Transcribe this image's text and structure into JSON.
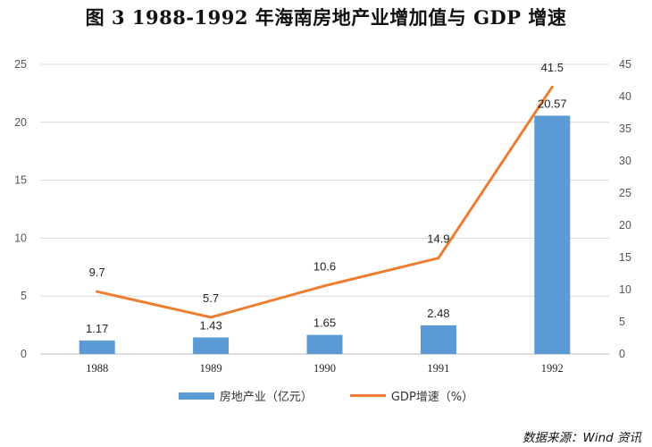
{
  "title": "图 3    1988-1992 年海南房地产业增加值与 GDP 增速",
  "source": "数据来源：Wind 资讯",
  "colors": {
    "bar": "#5b9bd5",
    "line": "#ed7d31",
    "grid": "#d9d9d9"
  },
  "chart_data": {
    "type": "bar",
    "title": "1988-1992 年海南房地产业增加值与 GDP 增速",
    "categories": [
      "1988",
      "1989",
      "1990",
      "1991",
      "1992"
    ],
    "series": [
      {
        "name": "房地产业（亿元）",
        "type": "bar",
        "axis": "left",
        "values": [
          1.17,
          1.43,
          1.65,
          2.48,
          20.57
        ],
        "labels": [
          "1.17",
          "1.43",
          "1.65",
          "2.48",
          "20.57"
        ]
      },
      {
        "name": "GDP增速（%）",
        "type": "line",
        "axis": "right",
        "values": [
          9.7,
          5.7,
          10.6,
          14.9,
          41.5
        ],
        "labels": [
          "9.7",
          "5.7",
          "10.6",
          "14.9",
          "41.5"
        ]
      }
    ],
    "ylim_left": [
      0,
      25
    ],
    "yticks_left": [
      "0",
      "5",
      "10",
      "15",
      "20",
      "25"
    ],
    "ylim_right": [
      0,
      45
    ],
    "yticks_right": [
      "0",
      "5",
      "10",
      "15",
      "20",
      "25",
      "30",
      "35",
      "40",
      "45"
    ],
    "grid": true,
    "legend_position": "bottom-center"
  }
}
